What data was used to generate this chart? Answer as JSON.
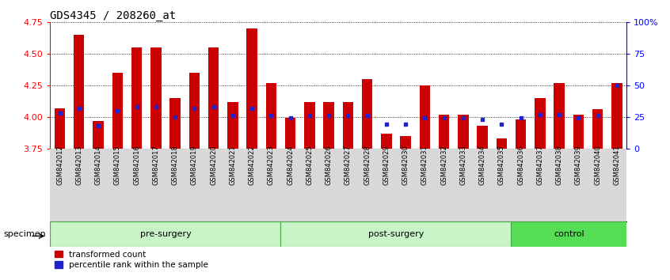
{
  "title": "GDS4345 / 208260_at",
  "samples": [
    "GSM842012",
    "GSM842013",
    "GSM842014",
    "GSM842015",
    "GSM842016",
    "GSM842017",
    "GSM842018",
    "GSM842019",
    "GSM842020",
    "GSM842021",
    "GSM842022",
    "GSM842023",
    "GSM842024",
    "GSM842025",
    "GSM842026",
    "GSM842027",
    "GSM842028",
    "GSM842029",
    "GSM842030",
    "GSM842031",
    "GSM842032",
    "GSM842033",
    "GSM842034",
    "GSM842035",
    "GSM842036",
    "GSM842037",
    "GSM842038",
    "GSM842039",
    "GSM842040",
    "GSM842041"
  ],
  "red_values": [
    4.07,
    4.65,
    3.97,
    4.35,
    4.55,
    4.55,
    4.15,
    4.35,
    4.55,
    4.12,
    4.7,
    4.27,
    3.99,
    4.12,
    4.12,
    4.12,
    4.3,
    3.87,
    3.85,
    4.25,
    4.02,
    4.02,
    3.93,
    3.83,
    3.98,
    4.15,
    4.27,
    4.02,
    4.06,
    4.27
  ],
  "blue_values": [
    28,
    32,
    18,
    30,
    33,
    33,
    25,
    32,
    33,
    26,
    32,
    26,
    24,
    26,
    26,
    26,
    26,
    19,
    19,
    24,
    24,
    24,
    23,
    19,
    24,
    27,
    27,
    24,
    26,
    50
  ],
  "groups": [
    {
      "label": "pre-surgery",
      "start": 0,
      "end": 11
    },
    {
      "label": "post-surgery",
      "start": 12,
      "end": 23
    },
    {
      "label": "control",
      "start": 24,
      "end": 29
    }
  ],
  "group_colors": [
    "#c8f5c8",
    "#c8f5c8",
    "#55dd55"
  ],
  "y_min": 3.75,
  "y_max": 4.75,
  "y_ticks": [
    3.75,
    4.0,
    4.25,
    4.5,
    4.75
  ],
  "bar_color": "#CC0000",
  "dot_color": "#2222CC",
  "bar_width": 0.55,
  "background_color": "#ffffff",
  "title_fontsize": 10,
  "specimen_label": "specimen"
}
